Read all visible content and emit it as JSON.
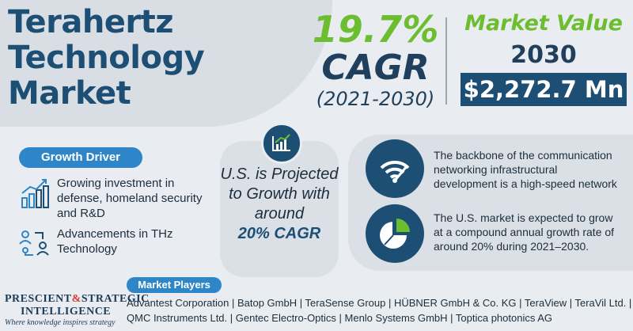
{
  "title": {
    "line1": "Terahertz",
    "line2": "Technology",
    "line3": "Market"
  },
  "cagr": {
    "percent": "19.7%",
    "label": "CAGR",
    "years": "(2021-2030)"
  },
  "market_value": {
    "title": "Market Value",
    "year": "2030",
    "value": "$2,272.7 Mn"
  },
  "growth_driver": {
    "label": "Growth Driver",
    "items": [
      {
        "text": "Growing investment in defense, homeland security and R&D",
        "icon": "bar-growth-icon"
      },
      {
        "text": "Advancements in THz Technology",
        "icon": "people-network-icon"
      }
    ]
  },
  "us_projection": {
    "text": "U.S. is Projected to Growth with around",
    "highlight": "20% CAGR",
    "icon": "chart-icon"
  },
  "facts": [
    {
      "text": "The backbone of the communication networking infrastructural development is a high-speed network",
      "icon": "wifi-speed-icon"
    },
    {
      "text": "The U.S. market is expected to grow at a compound annual growth rate of around 20% during 2021–2030.",
      "icon": "pie-chart-icon"
    }
  ],
  "market_players": {
    "label": "Market Players",
    "line1": "Advantest Corporation | Batop GmbH | TeraSense Group | HÜBNER GmbH & Co. KG | TeraView | TeraVil Ltd. |",
    "line2": "QMC Instruments Ltd. | Gentec Electro-Optics | Menlo Systems GmbH | Toptica photonics AG"
  },
  "logo": {
    "line1a": "PRESCIENT",
    "amp": "&",
    "line1b": "STRATEGIC",
    "line2": "INTELLIGENCE",
    "tagline": "Where knowledge inspires strategy"
  },
  "colors": {
    "navy": "#1d4f75",
    "green": "#6cbd2f",
    "blue": "#2e86c8",
    "red": "#d63b2f"
  }
}
